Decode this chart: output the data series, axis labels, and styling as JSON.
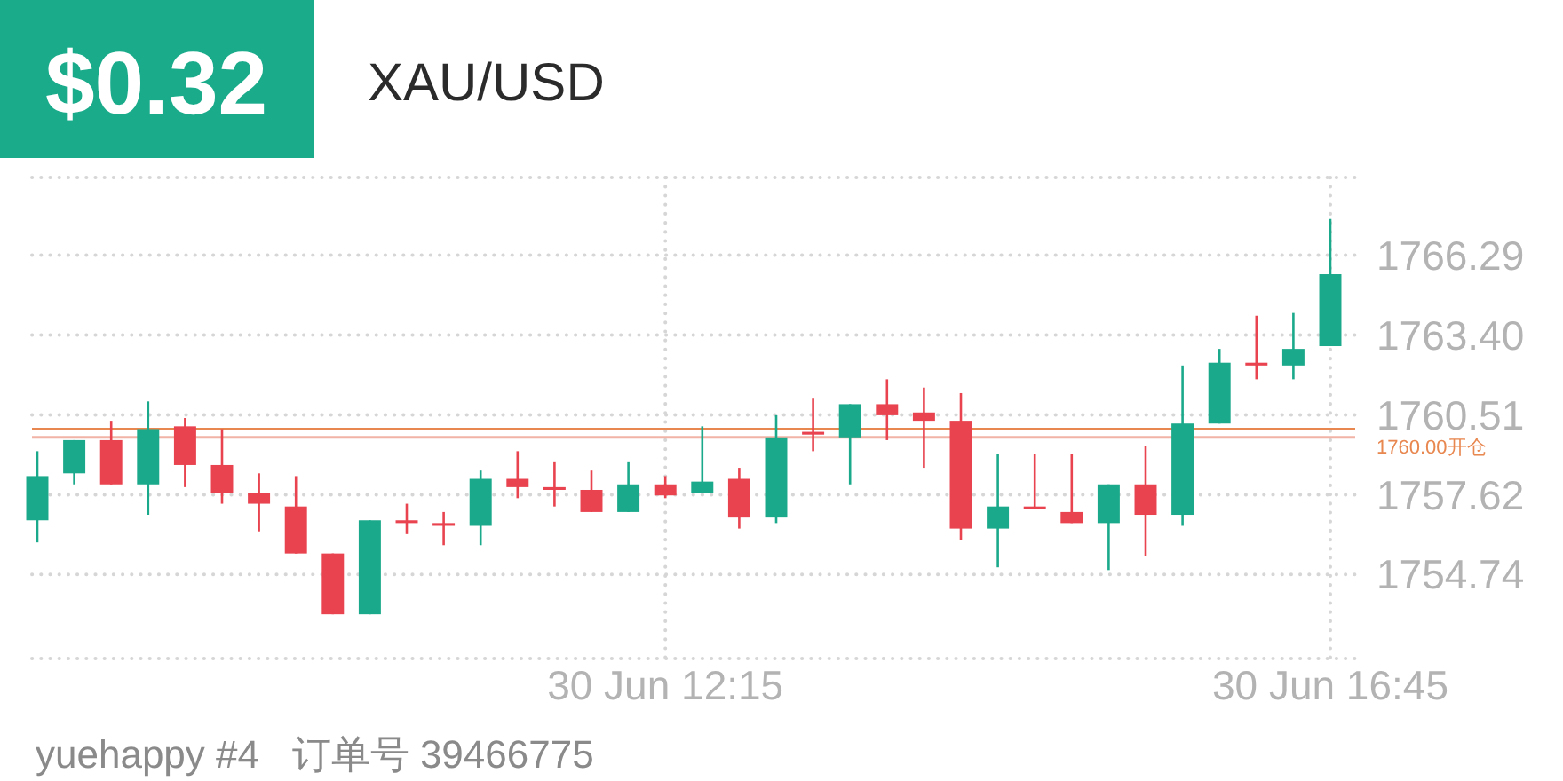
{
  "chart_data": {
    "type": "candlestick",
    "title": "XAU/USD",
    "annotations": [
      "$0.32",
      "yuehappy #4   订单号 39466775"
    ],
    "categories": [
      null,
      null,
      null,
      null,
      null,
      null,
      null,
      null,
      null,
      null,
      null,
      null,
      null,
      null,
      null,
      null,
      null,
      "30 Jun 12:15",
      null,
      null,
      null,
      null,
      null,
      null,
      null,
      null,
      null,
      null,
      null,
      null,
      null,
      null,
      null,
      null,
      null,
      "30 Jun 16:45"
    ],
    "ohlc": [
      [
        1756.7,
        1759.2,
        1755.9,
        1758.3
      ],
      [
        1758.4,
        1759.6,
        1758.0,
        1759.6
      ],
      [
        1759.6,
        1760.3,
        1758.0,
        1758.0
      ],
      [
        1758.0,
        1761.0,
        1756.9,
        1760.0
      ],
      [
        1760.1,
        1760.4,
        1757.9,
        1758.7
      ],
      [
        1758.7,
        1760.0,
        1757.3,
        1757.7
      ],
      [
        1757.7,
        1758.4,
        1756.3,
        1757.3
      ],
      [
        1757.2,
        1758.3,
        1755.5,
        1755.5
      ],
      [
        1755.5,
        1755.5,
        1753.3,
        1753.3
      ],
      [
        1753.3,
        1756.7,
        1753.3,
        1756.7
      ],
      [
        1756.7,
        1757.3,
        1756.2,
        1756.6
      ],
      [
        1756.6,
        1757.0,
        1755.8,
        1756.5
      ],
      [
        1756.5,
        1758.5,
        1755.8,
        1758.2
      ],
      [
        1758.2,
        1759.2,
        1757.5,
        1757.9
      ],
      [
        1757.9,
        1758.8,
        1757.2,
        1757.8
      ],
      [
        1757.8,
        1758.5,
        1757.0,
        1757.0
      ],
      [
        1757.0,
        1758.8,
        1757.0,
        1758.0
      ],
      [
        1758.0,
        1758.3,
        1757.5,
        1757.6
      ],
      [
        1757.7,
        1760.1,
        1757.7,
        1758.1
      ],
      [
        1758.2,
        1758.6,
        1756.4,
        1756.8
      ],
      [
        1756.8,
        1760.5,
        1756.6,
        1759.7
      ],
      [
        1759.9,
        1761.1,
        1759.2,
        1759.8
      ],
      [
        1759.7,
        1760.9,
        1758.0,
        1760.9
      ],
      [
        1760.9,
        1761.8,
        1759.6,
        1760.5
      ],
      [
        1760.6,
        1761.5,
        1758.6,
        1760.3
      ],
      [
        1760.3,
        1761.3,
        1756.0,
        1756.4
      ],
      [
        1756.4,
        1759.1,
        1755.0,
        1757.2
      ],
      [
        1757.2,
        1759.1,
        1757.1,
        1757.1
      ],
      [
        1757.0,
        1759.1,
        1756.6,
        1756.6
      ],
      [
        1756.6,
        1758.0,
        1754.9,
        1758.0
      ],
      [
        1758.0,
        1759.4,
        1755.4,
        1756.9
      ],
      [
        1756.9,
        1762.3,
        1756.5,
        1760.2
      ],
      [
        1760.2,
        1762.9,
        1760.2,
        1762.4
      ],
      [
        1762.4,
        1764.1,
        1761.8,
        1762.3
      ],
      [
        1762.3,
        1764.2,
        1761.8,
        1762.9
      ],
      [
        1763.0,
        1767.6,
        1763.0,
        1765.6
      ]
    ],
    "colors": [
      "#1aa98a",
      "#1aa98a",
      "#e8434f",
      "#1aa98a",
      "#e8434f",
      "#e8434f",
      "#e8434f",
      "#e8434f",
      "#e8434f",
      "#1aa98a",
      "#e8434f",
      "#e8434f",
      "#1aa98a",
      "#e8434f",
      "#e8434f",
      "#e8434f",
      "#1aa98a",
      "#e8434f",
      "#1aa98a",
      "#e8434f",
      "#1aa98a",
      "#e8434f",
      "#1aa98a",
      "#e8434f",
      "#e8434f",
      "#e8434f",
      "#1aa98a",
      "#e8434f",
      "#e8434f",
      "#1aa98a",
      "#e8434f",
      "#1aa98a",
      "#1aa98a",
      "#e8434f",
      "#1aa98a",
      "#1aa98a"
    ],
    "ylim": [
      1751.7,
      1769.1
    ],
    "yticks": [
      1754.74,
      1757.62,
      1760.51,
      {
        "value": 1763.4,
        "label": "1763.40"
      },
      1766.29
    ],
    "grid": true,
    "ref_lines": [
      {
        "axis": "y",
        "value": 1760.0,
        "label": "1760.00开仓",
        "color": "#e8874f"
      },
      {
        "axis": "y",
        "value": 1759.7,
        "color": "#f0b3a6"
      }
    ]
  }
}
